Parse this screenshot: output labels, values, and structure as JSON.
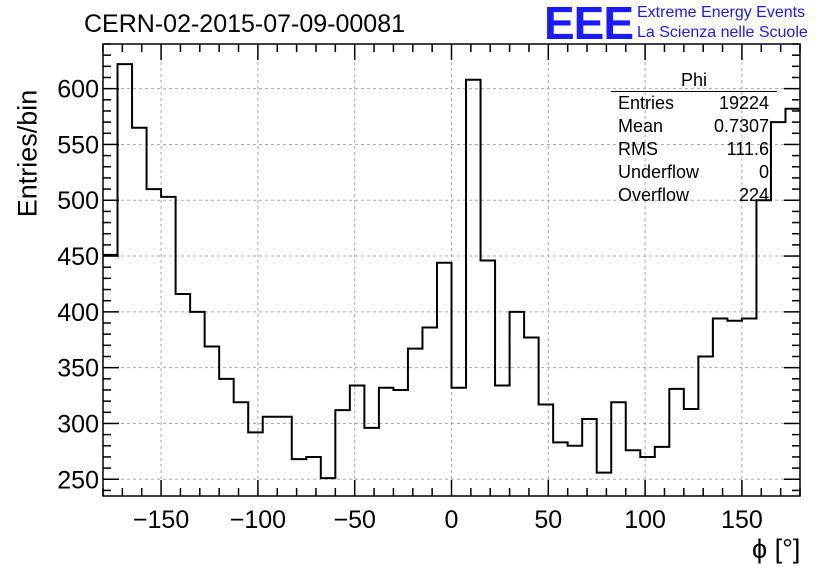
{
  "header": {
    "run_title": "CERN-02-2015-07-09-00081",
    "logo_text": "EEE",
    "org_line1": "Extreme Energy Events",
    "org_line2": "La Scienza nelle Scuole"
  },
  "stats_box": {
    "title": "Phi",
    "rows": [
      {
        "key": "Entries",
        "value": "19224"
      },
      {
        "key": "Mean",
        "value": "0.7307"
      },
      {
        "key": "RMS",
        "value": "111.6"
      },
      {
        "key": "Underflow",
        "value": "0"
      },
      {
        "key": "Overflow",
        "value": "224"
      }
    ]
  },
  "colors": {
    "line": "#000000",
    "grid": "#aaaaaa",
    "logo": "#1a1aff"
  },
  "chart_data": {
    "type": "line",
    "style": "step-histogram",
    "xlabel": "ϕ [°]",
    "ylabel": "Entries/bin",
    "xlim": [
      -180,
      180
    ],
    "ylim": [
      235,
      640
    ],
    "x_ticks": [
      -150,
      -100,
      -50,
      0,
      50,
      100,
      150
    ],
    "x_tick_labels": [
      "−150",
      "−100",
      "−50",
      "0",
      "50",
      "100",
      "150"
    ],
    "y_ticks": [
      250,
      300,
      350,
      400,
      450,
      500,
      550,
      600
    ],
    "y_tick_labels": [
      "250",
      "300",
      "350",
      "400",
      "450",
      "500",
      "550",
      "600"
    ],
    "grid": true,
    "bin_width": 7.5,
    "bin_edges_start": -180,
    "series": [
      {
        "values": [
          451,
          622,
          565,
          510,
          503,
          416,
          400,
          369,
          340,
          319,
          292,
          306,
          306,
          268,
          270,
          251,
          312,
          334,
          296,
          332,
          330,
          367,
          386,
          444,
          332,
          608,
          446,
          334,
          400,
          377,
          317,
          283,
          280,
          304,
          256,
          319,
          276,
          270,
          279,
          331,
          313,
          360,
          394,
          392,
          394,
          500,
          570,
          582
        ]
      }
    ]
  }
}
